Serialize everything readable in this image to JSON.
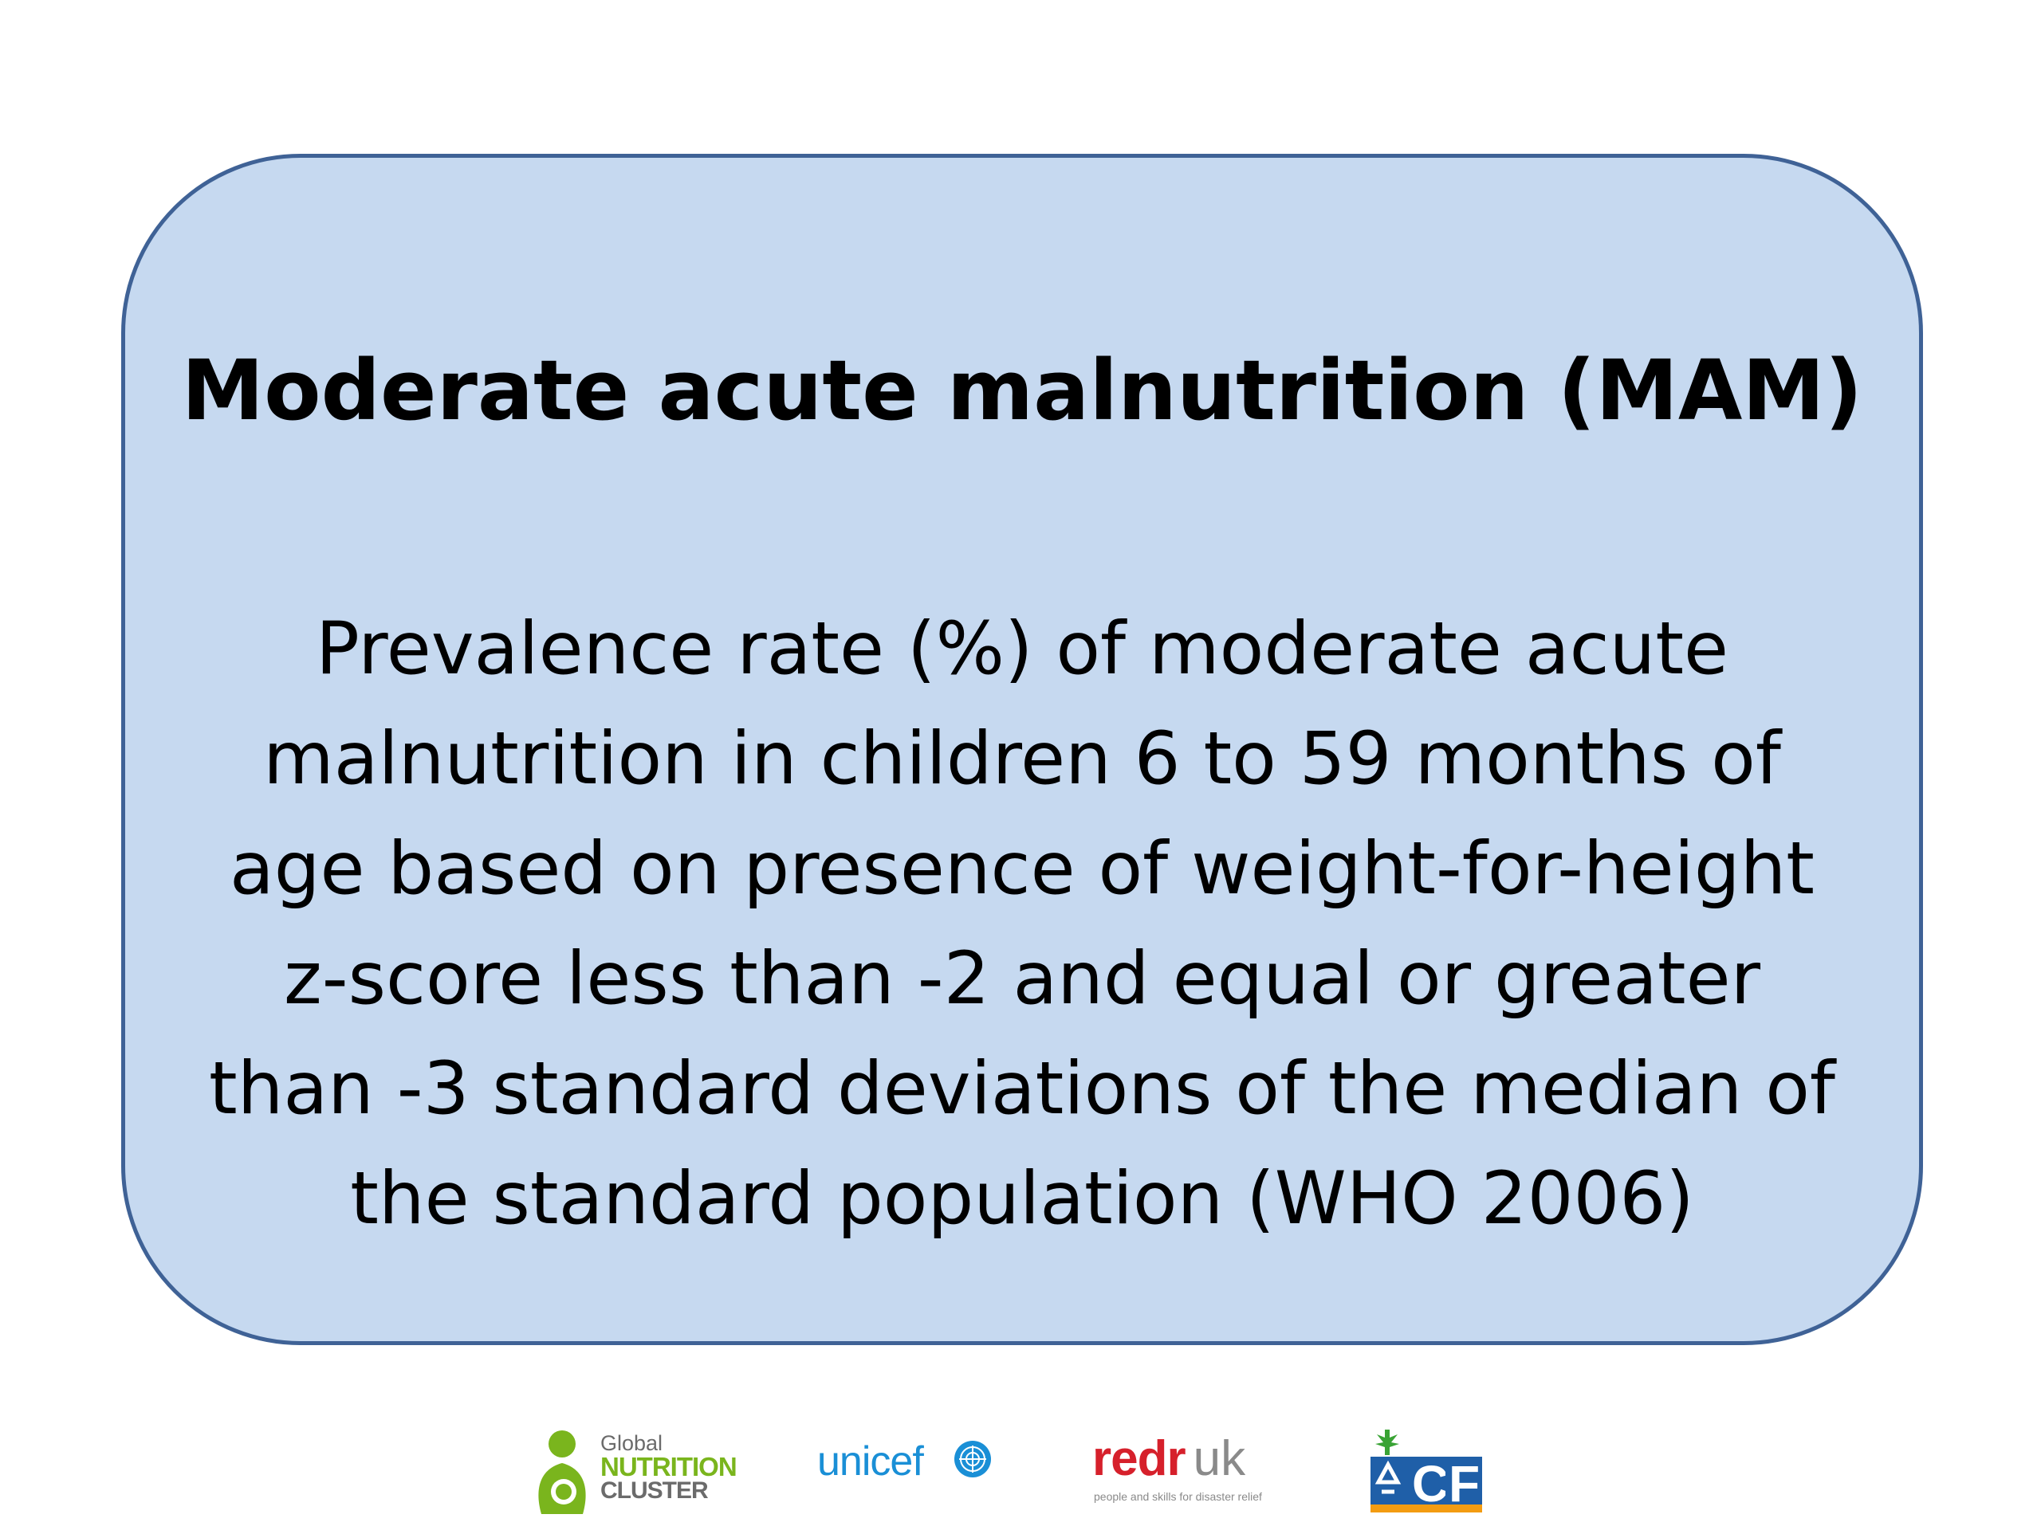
{
  "slide": {
    "title": "Moderate acute malnutrition (MAM)",
    "body": "Prevalence rate (%) of moderate acute malnutrition in children 6 to 59 months of age based on presence of weight-for-height z-score less than -2 and equal or greater than -3 standard deviations of the median of the standard population (WHO 2006)"
  },
  "colors": {
    "card_fill": "#c6d9f0",
    "card_border": "#3f6296"
  },
  "logos": {
    "gnc": {
      "line1": "Global",
      "line2": "NUTRITION",
      "line3": "CLUSTER",
      "icon": "mother-child-icon"
    },
    "unicef": {
      "word": "unicef",
      "icon": "un-emblem-icon"
    },
    "redr": {
      "word": "redr",
      "suffix": "uk",
      "tagline": "people and skills for disaster relief"
    },
    "acf": {
      "word": "ACF",
      "icon": "acf-logo-icon"
    }
  }
}
